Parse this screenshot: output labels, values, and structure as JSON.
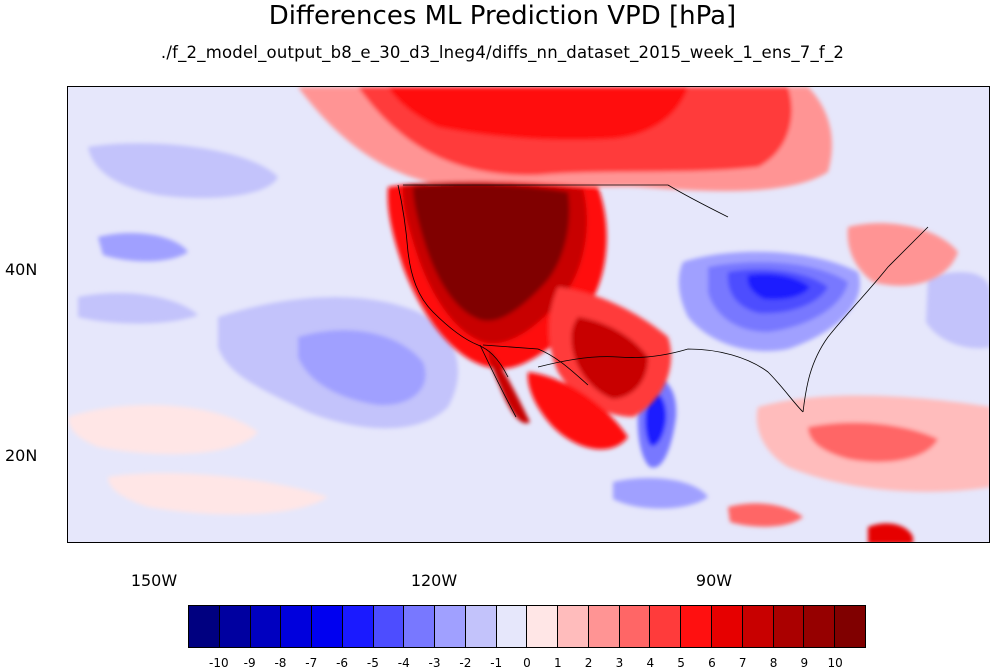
{
  "title": "Differences ML Prediction VPD [hPa]",
  "subtitle": "./f_2_model_output_b8_e_30_d3_lneg4/diffs_nn_dataset_2015_week_1_ens_7_f_2",
  "map": {
    "projection": "cylindrical equidistant",
    "lat_range": [
      10,
      59
    ],
    "lon_range": [
      -159,
      -60
    ],
    "lat_ticks": [
      {
        "value": 40,
        "label": "40N"
      },
      {
        "value": 20,
        "label": "20N"
      }
    ],
    "lon_ticks": [
      {
        "value": -150,
        "label": "150W"
      },
      {
        "value": -120,
        "label": "120W"
      },
      {
        "value": -90,
        "label": "90W"
      }
    ],
    "field": "VPD difference",
    "units": "hPa"
  },
  "colorbar": {
    "levels": [
      "-10",
      "-9",
      "-8",
      "-7",
      "-6",
      "-5",
      "-4",
      "-3",
      "-2",
      "-1",
      "0",
      "1",
      "2",
      "3",
      "4",
      "5",
      "6",
      "7",
      "8",
      "9",
      "10"
    ],
    "colors": [
      "#000080",
      "#0000a0",
      "#0000c0",
      "#0000dd",
      "#0000f0",
      "#1a1aff",
      "#4d4dff",
      "#7878ff",
      "#a0a0ff",
      "#c3c3fb",
      "#e6e7fb",
      "#ffe6e6",
      "#ffbcbc",
      "#ff9494",
      "#ff6666",
      "#ff3b3b",
      "#ff1010",
      "#e60000",
      "#c80000",
      "#aa0000",
      "#960000",
      "#800000"
    ]
  }
}
